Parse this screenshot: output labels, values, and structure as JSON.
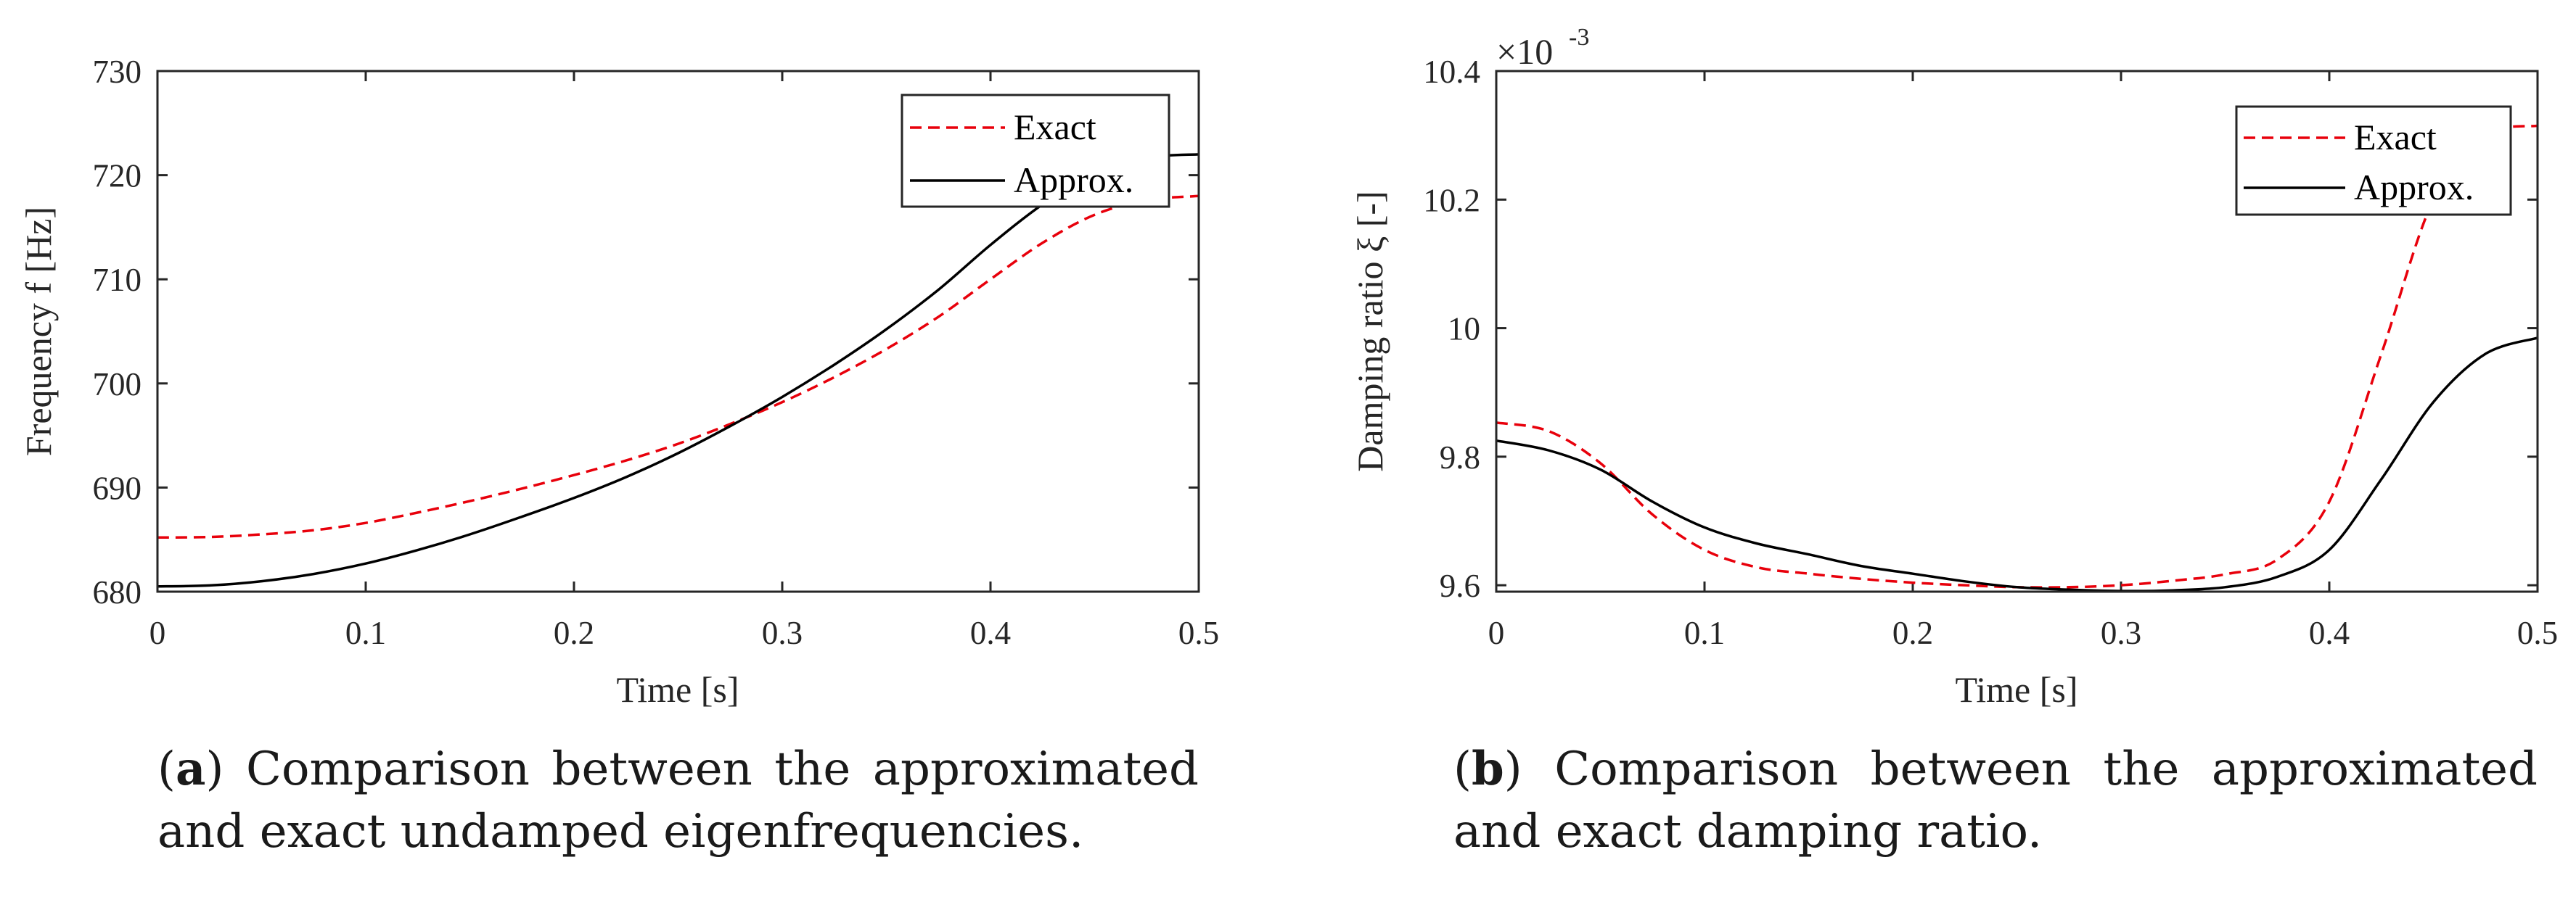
{
  "chart_data": [
    {
      "type": "line",
      "xlabel": "Time [s]",
      "ylabel": "Frequency f [Hz]",
      "xlim": [
        0,
        0.5
      ],
      "ylim": [
        680,
        730
      ],
      "xticks": [
        "0",
        "0.1",
        "0.2",
        "0.3",
        "0.4",
        "0.5"
      ],
      "yticks": [
        "680",
        "690",
        "700",
        "710",
        "720",
        "730"
      ],
      "legend_position": "top-right",
      "series": [
        {
          "name": "Exact",
          "style": "dashed",
          "color": "#e8000b",
          "x": [
            0,
            0.025,
            0.05,
            0.075,
            0.1,
            0.125,
            0.15,
            0.175,
            0.2,
            0.225,
            0.25,
            0.275,
            0.3,
            0.325,
            0.35,
            0.375,
            0.4,
            0.425,
            0.45,
            0.475,
            0.5
          ],
          "y": [
            685.2,
            685.25,
            685.5,
            685.9,
            686.6,
            687.6,
            688.7,
            689.9,
            691.2,
            692.6,
            694.2,
            696.1,
            698.2,
            700.6,
            703.3,
            706.4,
            710.0,
            713.5,
            716.2,
            717.6,
            718.0
          ]
        },
        {
          "name": "Approx.",
          "style": "solid",
          "color": "#000000",
          "x": [
            0,
            0.025,
            0.05,
            0.075,
            0.1,
            0.125,
            0.15,
            0.175,
            0.2,
            0.225,
            0.25,
            0.275,
            0.3,
            0.325,
            0.35,
            0.375,
            0.4,
            0.425,
            0.45,
            0.475,
            0.5
          ],
          "y": [
            680.5,
            680.6,
            681.0,
            681.7,
            682.7,
            684.0,
            685.5,
            687.2,
            689.0,
            691.0,
            693.3,
            695.9,
            698.7,
            701.8,
            705.2,
            709.0,
            713.3,
            717.2,
            720.3,
            721.7,
            722.0
          ]
        }
      ]
    },
    {
      "type": "line",
      "xlabel": "Time [s]",
      "ylabel": "Damping ratio ξ [-]",
      "xlim": [
        0,
        0.5
      ],
      "ylim": [
        9.59,
        10.4
      ],
      "xticks": [
        "0",
        "0.1",
        "0.2",
        "0.3",
        "0.4",
        "0.5"
      ],
      "yticks": [
        "9.6",
        "9.8",
        "10",
        "10.2",
        "10.4"
      ],
      "ytick_values": [
        9.6,
        9.8,
        10.0,
        10.2,
        10.4
      ],
      "y_multiplier_base": "×10",
      "y_multiplier_exp": "-3",
      "legend_position": "top-right",
      "series": [
        {
          "name": "Exact",
          "style": "dashed",
          "color": "#e8000b",
          "x": [
            0,
            0.025,
            0.05,
            0.075,
            0.1,
            0.125,
            0.15,
            0.175,
            0.2,
            0.225,
            0.25,
            0.275,
            0.3,
            0.325,
            0.35,
            0.375,
            0.4,
            0.425,
            0.45,
            0.475,
            0.5
          ],
          "y": [
            9.853,
            9.84,
            9.79,
            9.71,
            9.655,
            9.628,
            9.618,
            9.61,
            9.604,
            9.6,
            9.597,
            9.597,
            9.6,
            9.607,
            9.617,
            9.64,
            9.73,
            9.96,
            10.2,
            10.3,
            10.315
          ]
        },
        {
          "name": "Approx.",
          "style": "solid",
          "color": "#000000",
          "x": [
            0,
            0.025,
            0.05,
            0.075,
            0.1,
            0.125,
            0.15,
            0.175,
            0.2,
            0.225,
            0.25,
            0.275,
            0.3,
            0.325,
            0.35,
            0.375,
            0.4,
            0.425,
            0.45,
            0.475,
            0.5
          ],
          "y": [
            9.825,
            9.81,
            9.78,
            9.73,
            9.69,
            9.665,
            9.648,
            9.63,
            9.618,
            9.606,
            9.597,
            9.593,
            9.591,
            9.592,
            9.597,
            9.613,
            9.655,
            9.765,
            9.885,
            9.96,
            9.985
          ]
        }
      ]
    }
  ],
  "captions": [
    {
      "label": "a",
      "line1": "Comparison between the approximated",
      "line2": "and exact undamped eigenfrequencies."
    },
    {
      "label": "b",
      "line1": "Comparison between the approximated",
      "line2": "and exact damping ratio."
    }
  ]
}
